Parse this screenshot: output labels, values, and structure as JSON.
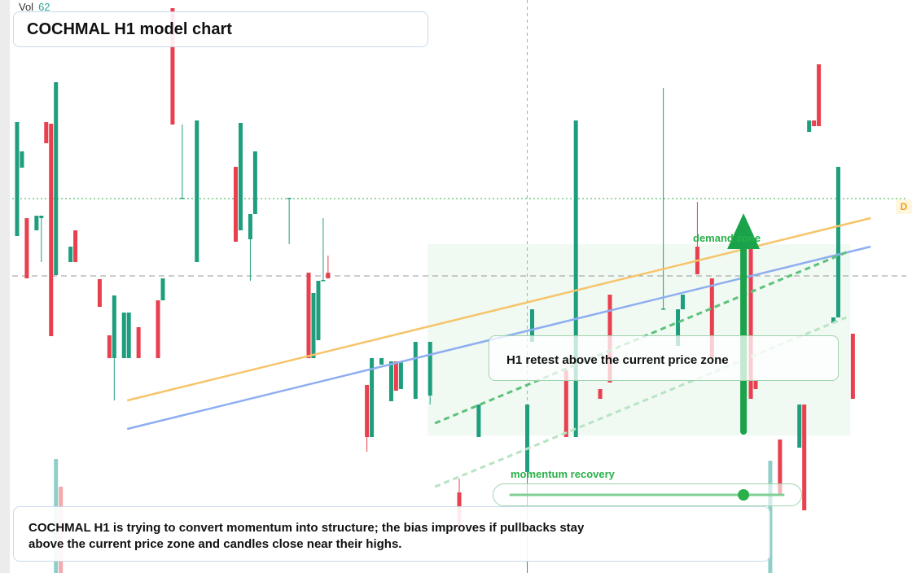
{
  "chart_data": {
    "type": "candlestick",
    "title": "COCHMAL H1 model chart",
    "vol_label": "Vol",
    "vol_value": 62,
    "up_color": "#1f9e7e",
    "down_color": "#e8404f",
    "xlim": [
      -1,
      183
    ],
    "ylim": [
      0,
      704
    ],
    "x": [
      0,
      1,
      2,
      4,
      5,
      6,
      7,
      8,
      11,
      12,
      17,
      19,
      20,
      22,
      23,
      25,
      29,
      30,
      32,
      34,
      37,
      45,
      46,
      48,
      49,
      56,
      60,
      61,
      62,
      63,
      64,
      72,
      73,
      75,
      77,
      78,
      79,
      82,
      85,
      91,
      95,
      105,
      106,
      113,
      115,
      120,
      122,
      133,
      136,
      137,
      140,
      143,
      151,
      152,
      157,
      161,
      162,
      163,
      164,
      165,
      168,
      169,
      172
    ],
    "open": [
      414,
      498,
      436,
      421,
      436,
      554,
      552,
      366,
      382,
      421,
      361,
      292,
      264,
      264,
      264,
      302,
      335,
      335,
      694,
      460,
      382,
      499,
      421,
      410,
      441,
      460,
      369,
      264,
      286,
      359,
      369,
      231,
      167,
      256,
      211,
      260,
      226,
      214,
      218,
      99,
      167,
      124,
      284,
      249,
      167,
      226,
      342,
      324,
      279,
      324,
      401,
      362,
      401,
      237,
      164,
      154,
      207,
      542,
      556,
      625,
      307,
      314,
      294
    ],
    "high": [
      554,
      518,
      436,
      439,
      439,
      554,
      552,
      603,
      401,
      421,
      361,
      292,
      341,
      320,
      320,
      302,
      335,
      362,
      694,
      551,
      556,
      499,
      553,
      441,
      518,
      461,
      369,
      344,
      359,
      436,
      390,
      231,
      264,
      264,
      260,
      260,
      260,
      284,
      284,
      116,
      207,
      207,
      324,
      249,
      556,
      226,
      342,
      596,
      324,
      342,
      456,
      362,
      401,
      237,
      164,
      207,
      207,
      556,
      556,
      625,
      314,
      499,
      294
    ],
    "low": [
      414,
      498,
      362,
      421,
      382,
      528,
      291,
      366,
      382,
      382,
      327,
      264,
      212,
      264,
      264,
      264,
      264,
      335,
      551,
      460,
      382,
      407,
      421,
      359,
      441,
      404,
      264,
      264,
      286,
      359,
      362,
      149,
      167,
      256,
      211,
      224,
      226,
      214,
      207,
      54,
      167,
      0,
      284,
      167,
      167,
      214,
      234,
      324,
      279,
      324,
      367,
      264,
      214,
      226,
      97,
      154,
      77,
      542,
      549,
      549,
      307,
      314,
      214
    ],
    "close": [
      554,
      518,
      362,
      439,
      439,
      528,
      291,
      603,
      401,
      382,
      327,
      264,
      341,
      320,
      320,
      264,
      264,
      362,
      551,
      461,
      556,
      407,
      553,
      441,
      518,
      461,
      264,
      344,
      359,
      360,
      362,
      167,
      264,
      264,
      260,
      224,
      260,
      284,
      284,
      54,
      207,
      207,
      324,
      167,
      556,
      214,
      234,
      325,
      324,
      342,
      367,
      264,
      214,
      226,
      97,
      207,
      77,
      556,
      549,
      549,
      314,
      499,
      214
    ],
    "volume": {
      "color": [
        "#8fcfc8",
        "#f4a9ae",
        "#8fcfc8"
      ],
      "x": [
        8,
        9,
        155
      ],
      "values": [
        140,
        106,
        138
      ]
    },
    "levels": [
      {
        "value": 460,
        "color": "#2bb04a",
        "style": "dotted"
      },
      {
        "value": 365,
        "color": "#999999",
        "style": "dashed"
      }
    ],
    "crosshair_x": 105,
    "trendlines": [
      {
        "color": "#f6c46a",
        "style": "solid",
        "x": [
          22.67,
          175.67
        ],
        "values": [
          212,
          436
        ]
      },
      {
        "color": "#8eaef0",
        "style": "solid",
        "x": [
          22.67,
          175.67
        ],
        "values": [
          177,
          401
        ]
      },
      {
        "color": "#5cc27a",
        "style": "dashed",
        "x": [
          86,
          170.67
        ],
        "values": [
          184,
          394
        ]
      },
      {
        "color": "#b8e4c4",
        "style": "dashed",
        "x": [
          86,
          170.67
        ],
        "values": [
          106,
          314
        ]
      }
    ],
    "demand_zone": {
      "label": "demand zone",
      "x": [
        84.5,
        171.5
      ],
      "values": [
        169,
        404
      ]
    },
    "arrow": {
      "color": "#1aa34a",
      "x": 149.5,
      "values": [
        174,
        442
      ]
    },
    "retest_label": "H1 retest above the current price zone",
    "momentum_label": "momentum recovery",
    "momentum_marker_x": 149.5,
    "level_marker": "D",
    "note": "COCHMAL H1 is trying to convert momentum into structure; the bias improves if pullbacks stay above the current price zone and candles close near their highs."
  }
}
